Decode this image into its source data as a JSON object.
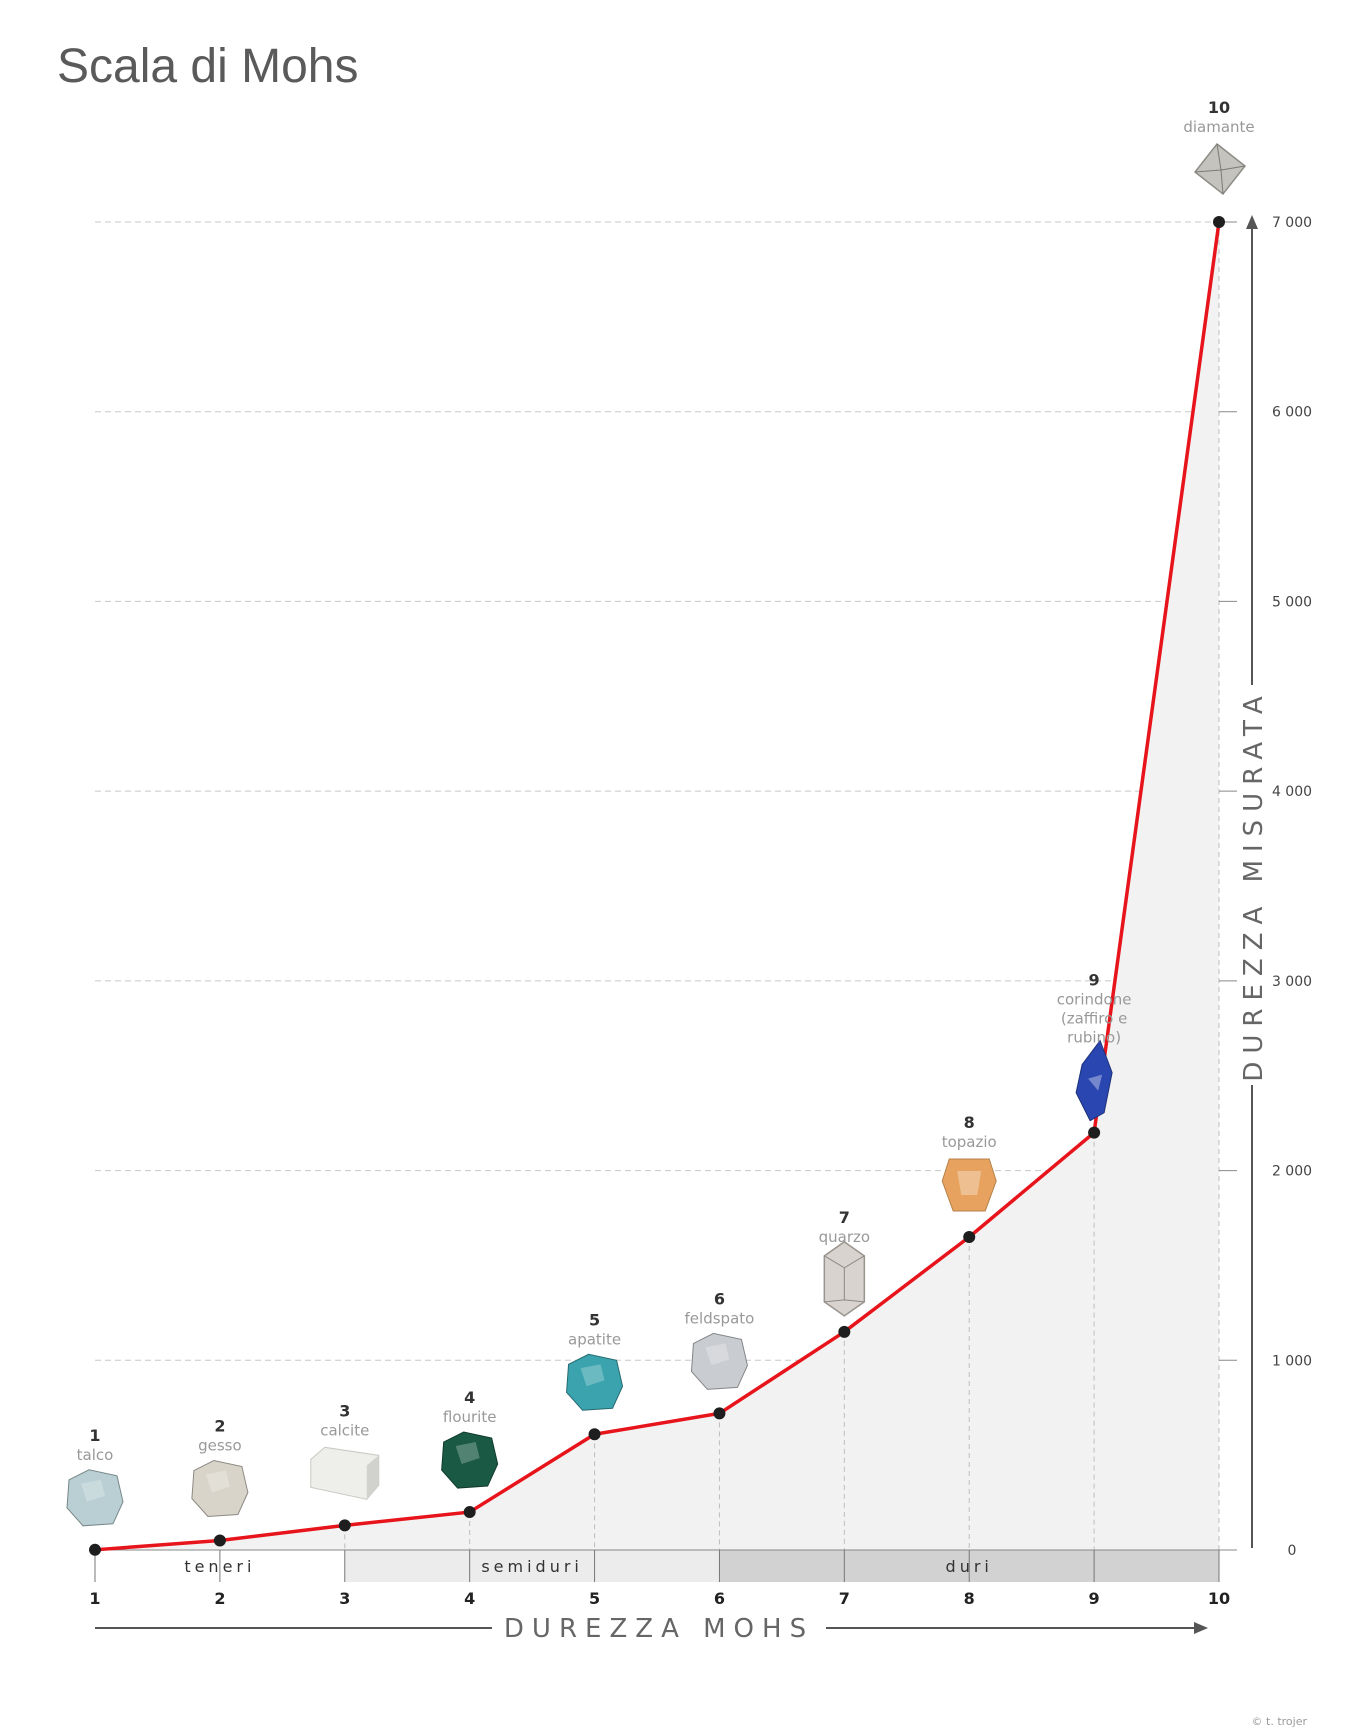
{
  "chart_data": {
    "type": "line",
    "title": "Scala di Mohs",
    "xlabel": "DUREZZA MOHS",
    "ylabel": "DUREZZA MISURATA",
    "x": [
      1,
      2,
      3,
      4,
      5,
      6,
      7,
      8,
      9,
      10
    ],
    "x_tick_labels": [
      "1",
      "2",
      "3",
      "4",
      "5",
      "6",
      "7",
      "8",
      "9",
      "10"
    ],
    "y": [
      1,
      50,
      130,
      200,
      610,
      720,
      1150,
      1650,
      2200,
      7000
    ],
    "ylim": [
      0,
      7000
    ],
    "y_tick_values": [
      0,
      1000,
      2000,
      3000,
      4000,
      5000,
      6000,
      7000
    ],
    "y_tick_labels": [
      "0",
      "1 000",
      "2 000",
      "3 000",
      "4 000",
      "5 000",
      "6 000",
      "7 000"
    ],
    "grid": true,
    "line_color": "#e8141b",
    "minerals": [
      {
        "num": "1",
        "name": [
          "talco"
        ],
        "color": "#b9cfd3",
        "shape": "rock"
      },
      {
        "num": "2",
        "name": [
          "gesso"
        ],
        "color": "#d9d4ca",
        "shape": "rock"
      },
      {
        "num": "3",
        "name": [
          "calcite"
        ],
        "color": "#eeeeea",
        "shape": "block"
      },
      {
        "num": "4",
        "name": [
          "flourite"
        ],
        "color": "#1a5a44",
        "shape": "rock"
      },
      {
        "num": "5",
        "name": [
          "apatite"
        ],
        "color": "#3aa3ad",
        "shape": "rock"
      },
      {
        "num": "6",
        "name": [
          "feldspato"
        ],
        "color": "#c9ccd0",
        "shape": "rock"
      },
      {
        "num": "7",
        "name": [
          "quarzo"
        ],
        "color": "#d8d3cf",
        "shape": "crystal"
      },
      {
        "num": "8",
        "name": [
          "topazio"
        ],
        "color": "#e6a25e",
        "shape": "gem"
      },
      {
        "num": "9",
        "name": [
          "corindone",
          "(zaffiro e",
          "rubino)"
        ],
        "color": "#2a46b0",
        "shape": "spindle"
      },
      {
        "num": "10",
        "name": [
          "diamante"
        ],
        "color": "#c5c3bd",
        "shape": "octa"
      }
    ],
    "bands": [
      {
        "label": "teneri",
        "from": 1,
        "to": 3,
        "color": "#ffffff"
      },
      {
        "label": "semiduri",
        "from": 3,
        "to": 6,
        "color": "#ececec"
      },
      {
        "label": "duri",
        "from": 6,
        "to": 10,
        "color": "#d2d2d2"
      }
    ]
  },
  "credit": "© t. trojer"
}
